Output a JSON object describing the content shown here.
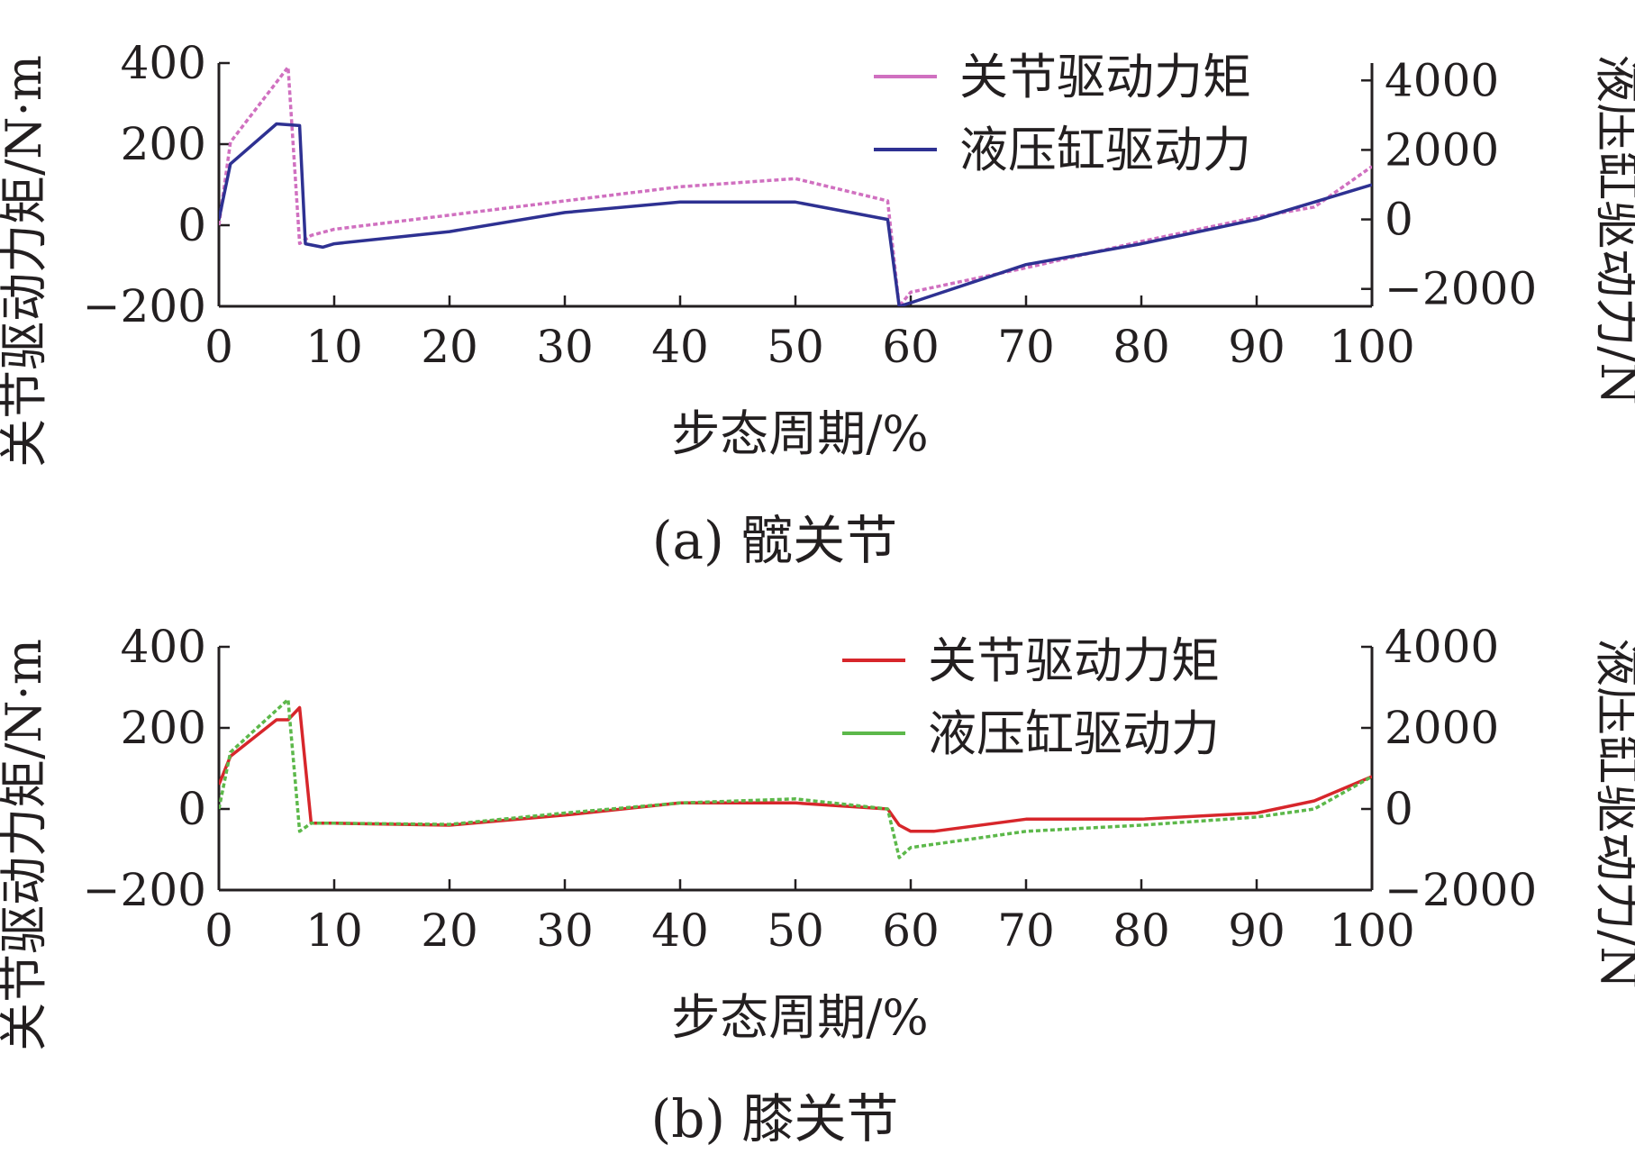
{
  "chart_data": [
    {
      "type": "line",
      "caption": "(a)  髋关节",
      "xlabel": "步态周期/%",
      "ylabel_left": "关节驱动力矩/N·m",
      "ylabel_right": "液压缸驱动力/N",
      "xlim": [
        0,
        100
      ],
      "ylim_left": [
        -200,
        400
      ],
      "ylim_right": [
        -2500,
        4500
      ],
      "xticks": [
        0,
        10,
        20,
        30,
        40,
        50,
        60,
        70,
        80,
        90,
        100
      ],
      "yticks_left": [
        -200,
        0,
        200,
        400
      ],
      "yticks_right": [
        -2000,
        0,
        2000,
        4000
      ],
      "xtick_labels": [
        "0",
        "10",
        "20",
        "30",
        "40",
        "50",
        "60",
        "70",
        "80",
        "90",
        "100"
      ],
      "ytick_labels_left": [
        "−200",
        "0",
        "200",
        "400"
      ],
      "ytick_labels_right": [
        "−2000",
        "0",
        "2000",
        "4000"
      ],
      "legend_position": "top-right",
      "series": [
        {
          "name": "关节驱动力矩",
          "axis": "left",
          "color": "#d070c0",
          "style": "dotted",
          "x": [
            0,
            1,
            6,
            7,
            8,
            10,
            20,
            30,
            40,
            50,
            58,
            59,
            60,
            70,
            80,
            90,
            95,
            100
          ],
          "y": [
            0,
            205,
            390,
            -45,
            -25,
            -10,
            25,
            60,
            95,
            115,
            60,
            -200,
            -165,
            -105,
            -40,
            20,
            45,
            145
          ]
        },
        {
          "name": "液压缸驱动力",
          "axis": "right",
          "color": "#2e3192",
          "style": "solid",
          "x": [
            0,
            1,
            5,
            7,
            7.5,
            9,
            10,
            20,
            30,
            40,
            50,
            58,
            59,
            60,
            70,
            80,
            90,
            95,
            100
          ],
          "y": [
            0,
            1600,
            2750,
            2700,
            -700,
            -800,
            -700,
            -350,
            200,
            500,
            500,
            0,
            -2500,
            -2400,
            -1300,
            -700,
            0,
            500,
            1000
          ]
        }
      ]
    },
    {
      "type": "line",
      "caption": "(b)  膝关节",
      "xlabel": "步态周期/%",
      "ylabel_left": "关节驱动力矩/N·m",
      "ylabel_right": "液压缸驱动力/N",
      "xlim": [
        0,
        100
      ],
      "ylim_left": [
        -200,
        400
      ],
      "ylim_right": [
        -2000,
        4000
      ],
      "xticks": [
        0,
        10,
        20,
        30,
        40,
        50,
        60,
        70,
        80,
        90,
        100
      ],
      "yticks_left": [
        -200,
        0,
        200,
        400
      ],
      "yticks_right": [
        -2000,
        0,
        2000,
        4000
      ],
      "xtick_labels": [
        "0",
        "10",
        "20",
        "30",
        "40",
        "50",
        "60",
        "70",
        "80",
        "90",
        "100"
      ],
      "ytick_labels_left": [
        "−200",
        "0",
        "200",
        "400"
      ],
      "ytick_labels_right": [
        "−2000",
        "0",
        "2000",
        "4000"
      ],
      "legend_position": "top-right",
      "series": [
        {
          "name": "关节驱动力矩",
          "axis": "left",
          "color": "#d7262b",
          "style": "solid",
          "x": [
            0,
            1,
            5,
            6,
            7,
            8,
            10,
            20,
            30,
            40,
            50,
            58,
            59,
            60,
            62,
            70,
            80,
            90,
            95,
            100
          ],
          "y": [
            60,
            130,
            220,
            220,
            250,
            -35,
            -35,
            -40,
            -15,
            15,
            15,
            0,
            -40,
            -55,
            -55,
            -25,
            -25,
            -10,
            20,
            80
          ]
        },
        {
          "name": "液压缸驱动力",
          "axis": "right",
          "color": "#5cb84a",
          "style": "dotted",
          "x": [
            0,
            1,
            6,
            7,
            8,
            10,
            20,
            30,
            40,
            50,
            58,
            59,
            60,
            70,
            80,
            90,
            95,
            100
          ],
          "y": [
            0,
            1400,
            2700,
            -550,
            -350,
            -350,
            -380,
            -100,
            150,
            250,
            0,
            -1200,
            -950,
            -550,
            -400,
            -200,
            0,
            800
          ]
        }
      ]
    }
  ]
}
